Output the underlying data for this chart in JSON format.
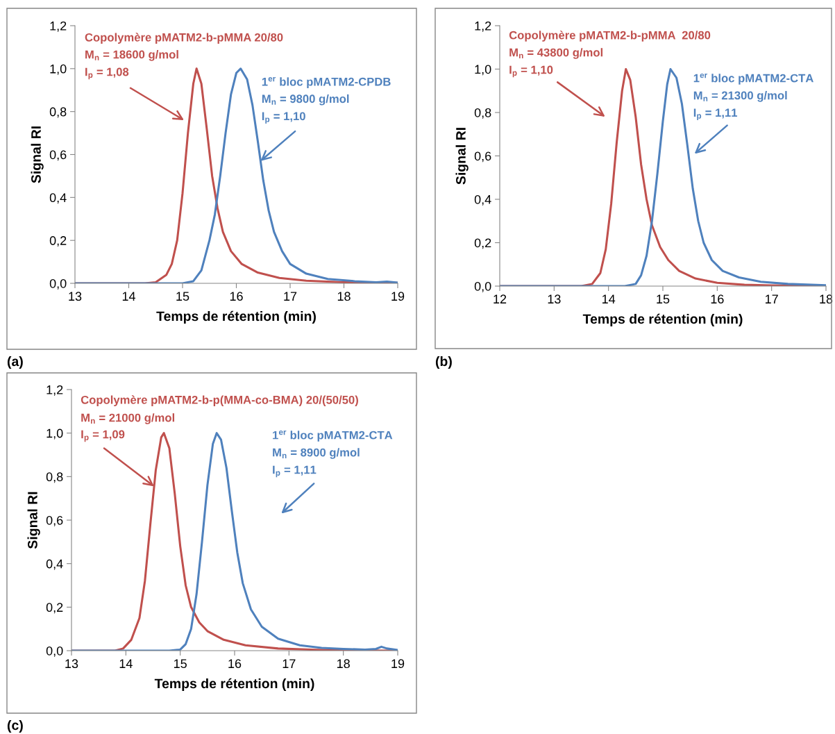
{
  "chart_data": [
    {
      "type": "line",
      "xlabel": "Temps de rétention (min)",
      "ylabel": "Signal RI",
      "xlim": [
        13,
        19
      ],
      "xticks": [
        13,
        14,
        15,
        16,
        17,
        18,
        19
      ],
      "ylim": [
        0,
        1.2
      ],
      "yticks": [
        {
          "value": 0,
          "label": "0,0"
        },
        {
          "value": 0.2,
          "label": "0,2"
        },
        {
          "value": 0.4,
          "label": "0,4"
        },
        {
          "value": 0.6,
          "label": "0,6"
        },
        {
          "value": 0.8,
          "label": "0,8"
        },
        {
          "value": 1.0,
          "label": "1,0"
        },
        {
          "value": 1.2,
          "label": "1,2"
        }
      ],
      "grid": false,
      "legend": false,
      "marker": "none",
      "line_style": "solid",
      "series": [
        {
          "color": "#c0504d",
          "x": [
            13,
            14.3,
            14.5,
            14.7,
            14.8,
            14.9,
            15.0,
            15.1,
            15.2,
            15.26,
            15.35,
            15.45,
            15.55,
            15.65,
            15.75,
            15.9,
            16.1,
            16.4,
            16.8,
            17.3,
            18,
            19
          ],
          "values": [
            0,
            0,
            0.005,
            0.04,
            0.09,
            0.2,
            0.42,
            0.7,
            0.93,
            1.0,
            0.93,
            0.72,
            0.5,
            0.35,
            0.24,
            0.15,
            0.09,
            0.05,
            0.025,
            0.012,
            0.005,
            0.002
          ]
        },
        {
          "color": "#4f81bd",
          "x": [
            13,
            15.0,
            15.2,
            15.35,
            15.5,
            15.6,
            15.7,
            15.8,
            15.9,
            16.0,
            16.08,
            16.2,
            16.3,
            16.4,
            16.5,
            16.6,
            16.7,
            16.85,
            17.0,
            17.3,
            17.7,
            18.2,
            18.6,
            18.8,
            19
          ],
          "values": [
            0,
            0,
            0.01,
            0.06,
            0.2,
            0.32,
            0.5,
            0.7,
            0.88,
            0.98,
            1.0,
            0.95,
            0.83,
            0.66,
            0.48,
            0.34,
            0.24,
            0.15,
            0.09,
            0.045,
            0.02,
            0.01,
            0.005,
            0.008,
            0.003
          ]
        }
      ],
      "annotations": [
        "Copolymère pMATM2-b-pMMA 20/80",
        "M$_{n}$ = 18600 g/mol",
        "I$_{p}$ = 1,08",
        "1$^{er}$ bloc pMATM2-CPDB",
        "M$_{n}$ = 9800 g/mol",
        {
          "text": "I$_{p}$ = 1,10",
          "x": 16.45,
          "y": 0.57
        },
        "(a)"
      ]
    },
    {
      "type": "line",
      "xlabel": "Temps de rétention (min)",
      "ylabel": "Signal RI",
      "xlim": [
        12,
        18
      ],
      "xticks": [
        12,
        13,
        14,
        15,
        16,
        17,
        18
      ],
      "ylim": [
        0,
        1.2
      ],
      "yticks": [
        {
          "value": 0,
          "label": "0,0"
        },
        {
          "value": 0.2,
          "label": "0,2"
        },
        {
          "value": 0.4,
          "label": "0,4"
        },
        {
          "value": 0.6,
          "label": "0,6"
        },
        {
          "value": 0.8,
          "label": "0,8"
        },
        {
          "value": 1.0,
          "label": "1,0"
        },
        {
          "value": 1.2,
          "label": "1,2"
        }
      ],
      "grid": false,
      "legend": false,
      "marker": "none",
      "line_style": "solid",
      "series": [
        {
          "color": "#c0504d",
          "x": [
            12,
            13.5,
            13.7,
            13.85,
            13.95,
            14.05,
            14.15,
            14.25,
            14.32,
            14.4,
            14.5,
            14.6,
            14.7,
            14.8,
            14.95,
            15.1,
            15.3,
            15.6,
            16,
            16.5,
            17,
            18
          ],
          "values": [
            0,
            0,
            0.01,
            0.06,
            0.17,
            0.38,
            0.66,
            0.9,
            1.0,
            0.95,
            0.78,
            0.56,
            0.4,
            0.28,
            0.18,
            0.12,
            0.07,
            0.035,
            0.015,
            0.006,
            0.003,
            0.001
          ]
        },
        {
          "color": "#4f81bd",
          "x": [
            12,
            14.3,
            14.5,
            14.6,
            14.7,
            14.8,
            14.9,
            15.0,
            15.08,
            15.14,
            15.25,
            15.35,
            15.45,
            15.55,
            15.65,
            15.75,
            15.9,
            16.1,
            16.4,
            16.8,
            17.3,
            18
          ],
          "values": [
            0,
            0,
            0.01,
            0.05,
            0.14,
            0.3,
            0.52,
            0.76,
            0.93,
            1.0,
            0.96,
            0.84,
            0.65,
            0.45,
            0.3,
            0.2,
            0.12,
            0.07,
            0.04,
            0.02,
            0.01,
            0.004
          ]
        }
      ],
      "annotations": [
        "Copolymère pMATM2-b-pMMA  20/80",
        "M$_{n}$ = 43800 g/mol",
        "I$_{p}$ = 1,10",
        "1$^{er}$ bloc pMATM2-CTA",
        "M$_{n}$ = 21300 g/mol",
        "I$_{p}$ = 1,11",
        "(b)"
      ]
    },
    {
      "type": "line",
      "xlabel": "Temps de rétention (min)",
      "ylabel": "Signal RI",
      "xlim": [
        13,
        19
      ],
      "xticks": [
        13,
        14,
        15,
        16,
        17,
        18,
        19
      ],
      "ylim": [
        0,
        1.2
      ],
      "yticks": [
        {
          "value": 0,
          "label": "0,0"
        },
        {
          "value": 0.2,
          "label": "0,2"
        },
        {
          "value": 0.4,
          "label": "0,4"
        },
        {
          "value": 0.6,
          "label": "0,6"
        },
        {
          "value": 0.8,
          "label": "0,8"
        },
        {
          "value": 1.0,
          "label": "1,0"
        },
        {
          "value": 1.2,
          "label": "1,2"
        }
      ],
      "grid": false,
      "legend": false,
      "marker": "none",
      "line_style": "solid",
      "series": [
        {
          "color": "#c0504d",
          "x": [
            13,
            13.8,
            13.95,
            14.1,
            14.25,
            14.35,
            14.45,
            14.55,
            14.65,
            14.7,
            14.8,
            14.9,
            15.0,
            15.1,
            15.2,
            15.35,
            15.5,
            15.8,
            16.2,
            16.8,
            17.5,
            18.2,
            19
          ],
          "values": [
            0,
            0,
            0.01,
            0.05,
            0.15,
            0.32,
            0.58,
            0.83,
            0.98,
            1.0,
            0.93,
            0.72,
            0.48,
            0.3,
            0.2,
            0.13,
            0.09,
            0.05,
            0.025,
            0.01,
            0.004,
            0.001,
            0
          ]
        },
        {
          "color": "#4f81bd",
          "x": [
            13,
            14.8,
            15.0,
            15.1,
            15.2,
            15.3,
            15.4,
            15.5,
            15.6,
            15.67,
            15.75,
            15.85,
            15.95,
            16.05,
            16.15,
            16.3,
            16.5,
            16.8,
            17.2,
            17.6,
            18.0,
            18.4,
            18.6,
            18.7,
            18.8,
            19
          ],
          "values": [
            0,
            0,
            0.005,
            0.03,
            0.1,
            0.26,
            0.5,
            0.76,
            0.95,
            1.0,
            0.97,
            0.84,
            0.64,
            0.45,
            0.31,
            0.19,
            0.11,
            0.055,
            0.025,
            0.013,
            0.008,
            0.005,
            0.008,
            0.018,
            0.01,
            0.003
          ]
        }
      ],
      "annotations": [
        "Copolymère pMATM2-b-p(MMA-co-BMA) 20/(50/50)",
        "M$_{n}$ = 21000 g/mol",
        {
          "text": "I$_{p}$ = 1,09",
          "x": 14.52,
          "y": 0.755
        },
        "1$^{er}$ bloc pMATM2-CTA",
        "M$_{n}$ = 8900 g/mol",
        "I$_{p}$ = 1,11",
        "(c)"
      ]
    }
  ]
}
